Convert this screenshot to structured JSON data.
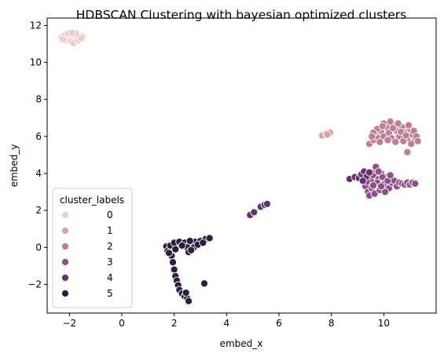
{
  "chart_data": {
    "type": "scatter",
    "title": "HDBSCAN Clustering with bayesian optimized clusters",
    "xlabel": "embed_x",
    "ylabel": "embed_y",
    "xlim": [
      -2.85,
      12.0
    ],
    "ylim": [
      -3.55,
      12.4
    ],
    "xticks": [
      -2,
      0,
      2,
      4,
      6,
      8,
      10
    ],
    "yticks": [
      -2,
      0,
      2,
      4,
      6,
      8,
      10,
      12
    ],
    "grid": false,
    "legend": {
      "title": "cluster_labels",
      "placement": "lower-left",
      "entries": [
        {
          "label": "0",
          "color": "#ebccc6"
        },
        {
          "label": "1",
          "color": "#daa3a1"
        },
        {
          "label": "2",
          "color": "#c17d92"
        },
        {
          "label": "3",
          "color": "#8f5088"
        },
        {
          "label": "4",
          "color": "#5f336d"
        },
        {
          "label": "5",
          "color": "#2d1e3e"
        }
      ]
    },
    "series": [
      {
        "name": "0",
        "color": "#ebccc6",
        "points": [
          [
            -2.3,
            11.35
          ],
          [
            -2.2,
            11.45
          ],
          [
            -2.1,
            11.3
          ],
          [
            -2.0,
            11.5
          ],
          [
            -1.9,
            11.4
          ],
          [
            -1.8,
            11.3
          ],
          [
            -1.7,
            11.45
          ],
          [
            -1.6,
            11.35
          ],
          [
            -1.5,
            11.4
          ],
          [
            -2.15,
            11.2
          ],
          [
            -1.95,
            11.15
          ],
          [
            -1.85,
            11.05
          ],
          [
            -2.05,
            11.55
          ],
          [
            -1.75,
            11.55
          ],
          [
            -1.65,
            11.2
          ],
          [
            -2.25,
            11.25
          ],
          [
            -1.55,
            11.3
          ],
          [
            -1.9,
            11.6
          ]
        ]
      },
      {
        "name": "1",
        "color": "#daa3a1",
        "points": [
          [
            7.65,
            6.05
          ],
          [
            7.8,
            6.15
          ],
          [
            7.95,
            6.2
          ],
          [
            7.85,
            6.1
          ]
        ]
      },
      {
        "name": "2",
        "color": "#c17d92",
        "points": [
          [
            9.45,
            5.6
          ],
          [
            9.6,
            5.8
          ],
          [
            9.7,
            6.1
          ],
          [
            9.8,
            5.9
          ],
          [
            9.9,
            6.3
          ],
          [
            10.0,
            6.0
          ],
          [
            10.1,
            6.5
          ],
          [
            10.2,
            6.2
          ],
          [
            10.3,
            5.9
          ],
          [
            10.4,
            6.6
          ],
          [
            10.5,
            6.3
          ],
          [
            10.6,
            6.0
          ],
          [
            10.7,
            6.5
          ],
          [
            10.8,
            6.2
          ],
          [
            10.9,
            5.9
          ],
          [
            11.0,
            6.4
          ],
          [
            11.1,
            6.1
          ],
          [
            11.2,
            5.8
          ],
          [
            9.75,
            6.4
          ],
          [
            9.85,
            5.7
          ],
          [
            10.0,
            6.7
          ],
          [
            10.25,
            6.8
          ],
          [
            10.45,
            5.7
          ],
          [
            10.55,
            6.7
          ],
          [
            10.75,
            5.75
          ],
          [
            10.95,
            6.6
          ],
          [
            11.05,
            5.6
          ],
          [
            11.15,
            6.3
          ],
          [
            11.25,
            6.0
          ],
          [
            9.6,
            6.2
          ],
          [
            10.35,
            6.45
          ],
          [
            10.65,
            6.25
          ],
          [
            10.85,
            6.05
          ],
          [
            10.15,
            5.8
          ],
          [
            9.95,
            6.55
          ],
          [
            10.9,
            5.15
          ],
          [
            9.55,
            6.0
          ],
          [
            11.3,
            5.75
          ]
        ]
      },
      {
        "name": "3",
        "color": "#8f5088",
        "points": [
          [
            9.3,
            3.3
          ],
          [
            9.4,
            3.0
          ],
          [
            9.5,
            3.6
          ],
          [
            9.6,
            3.9
          ],
          [
            9.7,
            4.2
          ],
          [
            9.8,
            3.7
          ],
          [
            9.9,
            4.0
          ],
          [
            10.0,
            3.4
          ],
          [
            10.1,
            3.8
          ],
          [
            10.2,
            3.2
          ],
          [
            10.3,
            3.5
          ],
          [
            10.4,
            3.6
          ],
          [
            10.5,
            3.3
          ],
          [
            10.6,
            3.5
          ],
          [
            10.7,
            3.45
          ],
          [
            10.8,
            3.4
          ],
          [
            10.9,
            3.5
          ],
          [
            11.0,
            3.4
          ],
          [
            11.1,
            3.5
          ],
          [
            11.2,
            3.45
          ],
          [
            9.45,
            2.8
          ],
          [
            9.55,
            3.2
          ],
          [
            9.65,
            2.9
          ],
          [
            9.75,
            3.5
          ],
          [
            9.85,
            3.1
          ],
          [
            9.95,
            3.8
          ],
          [
            9.7,
            4.35
          ],
          [
            9.8,
            4.1
          ],
          [
            10.15,
            3.6
          ],
          [
            10.25,
            3.9
          ],
          [
            10.05,
            3.0
          ],
          [
            9.35,
            3.55
          ],
          [
            9.6,
            3.35
          ],
          [
            9.9,
            3.3
          ]
        ]
      },
      {
        "name": "4",
        "color": "#5f336d",
        "points": [
          [
            4.9,
            1.75
          ],
          [
            5.05,
            1.9
          ],
          [
            5.3,
            2.2
          ],
          [
            5.45,
            2.3
          ],
          [
            5.55,
            2.35
          ],
          [
            8.7,
            3.7
          ],
          [
            8.9,
            3.8
          ],
          [
            9.05,
            3.75
          ],
          [
            9.15,
            3.95
          ],
          [
            9.25,
            4.1
          ],
          [
            9.35,
            3.85
          ],
          [
            9.45,
            4.05
          ],
          [
            9.2,
            3.6
          ]
        ]
      },
      {
        "name": "5",
        "color": "#2d1e3e",
        "points": [
          [
            1.7,
            0.05
          ],
          [
            1.75,
            -0.2
          ],
          [
            1.85,
            0.1
          ],
          [
            1.9,
            -0.45
          ],
          [
            1.95,
            -0.8
          ],
          [
            2.0,
            -1.2
          ],
          [
            2.05,
            -1.55
          ],
          [
            2.1,
            -1.8
          ],
          [
            2.15,
            -2.05
          ],
          [
            2.2,
            -2.3
          ],
          [
            2.3,
            -2.5
          ],
          [
            2.4,
            -2.65
          ],
          [
            2.5,
            -2.75
          ],
          [
            2.55,
            -2.9
          ],
          [
            2.45,
            -2.45
          ],
          [
            2.0,
            0.25
          ],
          [
            2.2,
            0.3
          ],
          [
            2.4,
            0.25
          ],
          [
            2.6,
            0.2
          ],
          [
            2.8,
            0.3
          ],
          [
            3.0,
            0.35
          ],
          [
            3.2,
            0.45
          ],
          [
            3.35,
            0.5
          ],
          [
            2.5,
            0.0
          ],
          [
            2.55,
            -0.25
          ],
          [
            2.6,
            0.35
          ],
          [
            2.75,
            0.0
          ],
          [
            2.9,
            0.15
          ],
          [
            3.1,
            0.25
          ],
          [
            3.15,
            -1.95
          ],
          [
            1.8,
            -0.3
          ],
          [
            2.05,
            -0.1
          ],
          [
            2.65,
            -0.15
          ],
          [
            2.3,
            0.1
          ]
        ]
      }
    ]
  }
}
